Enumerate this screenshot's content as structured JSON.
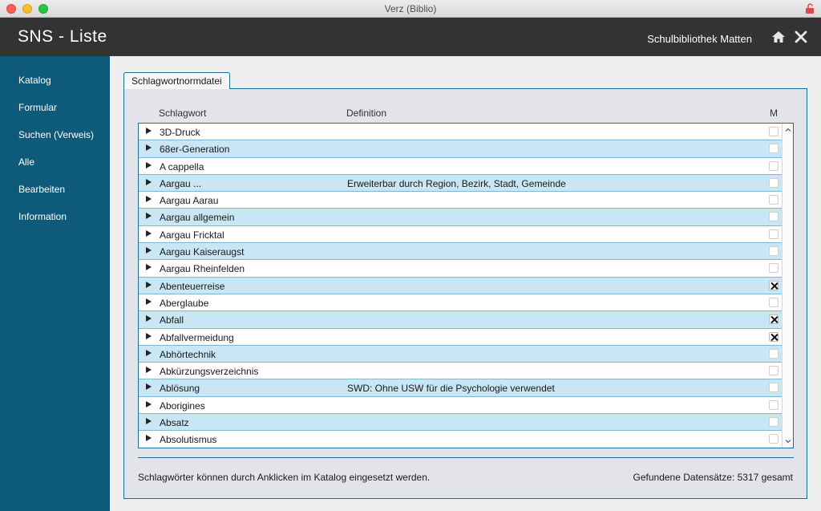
{
  "window": {
    "title": "Verz (Biblio)"
  },
  "header": {
    "title": "SNS - Liste",
    "library": "Schulbibliothek Matten"
  },
  "sidebar": {
    "items": [
      {
        "label": "Katalog"
      },
      {
        "label": "Formular"
      },
      {
        "label": "Suchen (Verweis)"
      },
      {
        "label": "Alle"
      },
      {
        "label": "Bearbeiten"
      },
      {
        "label": "Information"
      }
    ]
  },
  "tab": {
    "label": "Schlagwortnormdatei"
  },
  "table": {
    "columns": {
      "word": "Schlagwort",
      "definition": "Definition",
      "mark": "M"
    },
    "rows": [
      {
        "word": "3D-Druck",
        "definition": "",
        "marked": false
      },
      {
        "word": "68er-Generation",
        "definition": "",
        "marked": false
      },
      {
        "word": "A cappella",
        "definition": "",
        "marked": false
      },
      {
        "word": "Aargau ...",
        "definition": "Erweiterbar durch Region, Bezirk, Stadt, Gemeinde",
        "marked": false
      },
      {
        "word": "Aargau Aarau",
        "definition": "",
        "marked": false
      },
      {
        "word": "Aargau allgemein",
        "definition": "",
        "marked": false
      },
      {
        "word": "Aargau Fricktal",
        "definition": "",
        "marked": false
      },
      {
        "word": "Aargau Kaiseraugst",
        "definition": "",
        "marked": false
      },
      {
        "word": "Aargau Rheinfelden",
        "definition": "",
        "marked": false
      },
      {
        "word": "Abenteuerreise",
        "definition": "",
        "marked": true
      },
      {
        "word": "Aberglaube",
        "definition": "",
        "marked": false
      },
      {
        "word": "Abfall",
        "definition": "",
        "marked": true
      },
      {
        "word": "Abfallvermeidung",
        "definition": "",
        "marked": true
      },
      {
        "word": "Abhörtechnik",
        "definition": "",
        "marked": false
      },
      {
        "word": "Abkürzungsverzeichnis",
        "definition": "",
        "marked": false
      },
      {
        "word": "Ablösung",
        "definition": "SWD: Ohne USW für die Psychologie verwendet",
        "marked": false
      },
      {
        "word": "Aborigines",
        "definition": "",
        "marked": false
      },
      {
        "word": "Absatz",
        "definition": "",
        "marked": false
      },
      {
        "word": "Absolutismus",
        "definition": "",
        "marked": false
      }
    ]
  },
  "footer": {
    "hint": "Schlagwörter können durch Anklicken im Katalog eingesetzt werden.",
    "count": "Gefundene Datensätze: 5317 gesamt"
  },
  "colors": {
    "header": "#333333",
    "sidebar": "#0e5a7a",
    "row_alt": "#c8e6f4",
    "border": "#1b6e8f"
  }
}
